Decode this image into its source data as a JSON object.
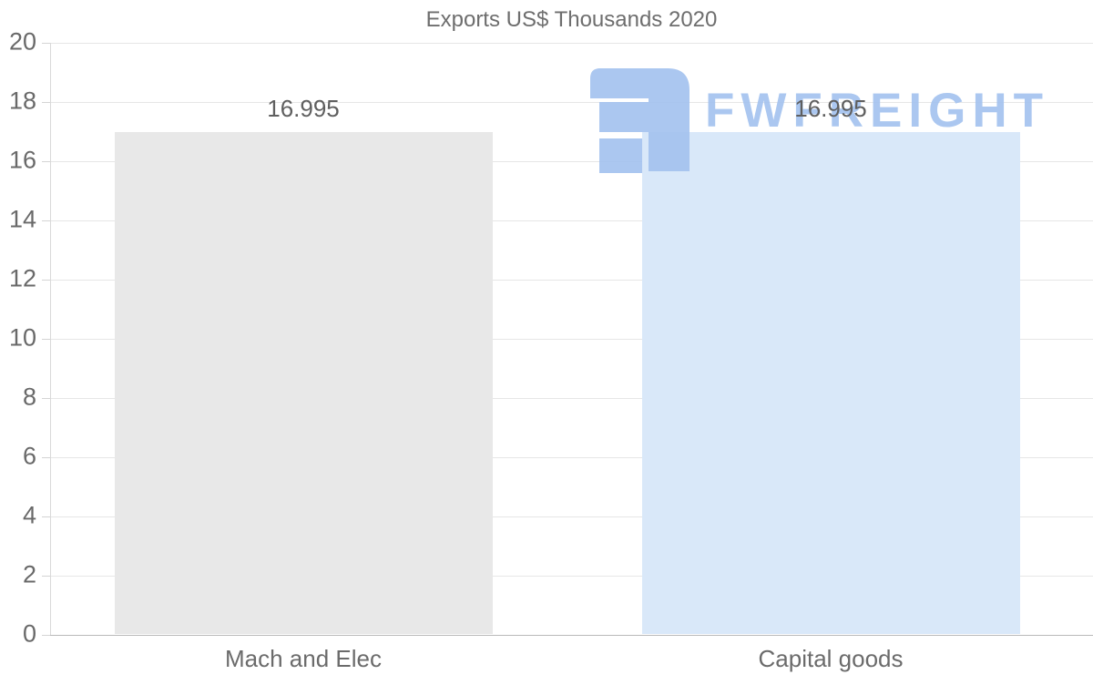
{
  "chart_data": {
    "type": "bar",
    "title": "Exports US$ Thousands 2020",
    "categories": [
      "Mach and Elec",
      "Capital goods"
    ],
    "values": [
      16.995,
      16.995
    ],
    "value_labels": [
      "16.995",
      "16.995"
    ],
    "series_colors": [
      "#e8e8e8",
      "#d9e8f9"
    ],
    "xlabel": "",
    "ylabel": "",
    "ylim": [
      0,
      20
    ],
    "yticks": [
      0,
      2,
      4,
      6,
      8,
      10,
      12,
      14,
      16,
      18,
      20
    ],
    "grid": true,
    "legend_position": "none"
  },
  "watermark": {
    "text": "FWFREIGHT",
    "icon": "fwfreight-logo",
    "color": "#a4c3ef"
  },
  "colors": {
    "background": "#ffffff",
    "gridline": "#e6e6e6",
    "zero_line": "#b9b9b9",
    "axis_text": "#696969",
    "title_text": "#6e6e6e"
  }
}
